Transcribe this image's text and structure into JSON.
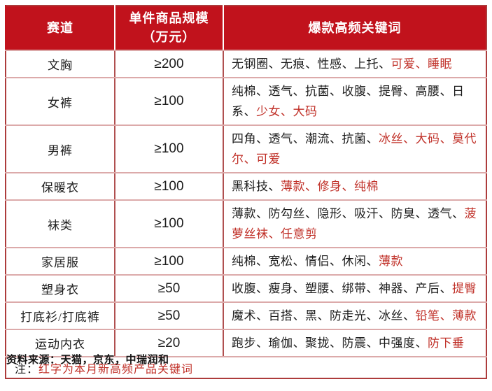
{
  "chart_data": {
    "type": "table",
    "title": "",
    "columns": [
      "赛道",
      "单件商品规模（万元）",
      "爆款高频关键词"
    ],
    "headers": [
      {
        "lines": [
          "赛道"
        ]
      },
      {
        "lines": [
          "单件商品规模",
          "（万元）"
        ]
      },
      {
        "lines": [
          "爆款高频关键词"
        ]
      }
    ],
    "rows": [
      {
        "category": "文胸",
        "scale": "≥200",
        "keywords": [
          {
            "text": "无钢圈、无痕、性感、上托、",
            "red": false
          },
          {
            "text": "可爱、睡眠",
            "red": true
          }
        ]
      },
      {
        "category": "女裤",
        "scale": "≥100",
        "keywords": [
          {
            "text": "纯棉、透气、抗菌、收腹、提臀、高腰、日系、",
            "red": false
          },
          {
            "text": "少女、大码",
            "red": true
          }
        ]
      },
      {
        "category": "男裤",
        "scale": "≥100",
        "keywords": [
          {
            "text": "四角、透气、潮流、抗菌、",
            "red": false
          },
          {
            "text": "冰丝、大码、莫代尔、可爱",
            "red": true
          }
        ]
      },
      {
        "category": "保暖衣",
        "scale": "≥100",
        "keywords": [
          {
            "text": "黑科技、",
            "red": false
          },
          {
            "text": "薄款、修身、纯棉",
            "red": true
          }
        ]
      },
      {
        "category": "袜类",
        "scale": "≥100",
        "keywords": [
          {
            "text": "薄款、防勾丝、隐形、吸汗、防臭、透气、",
            "red": false
          },
          {
            "text": "菠萝丝袜、任意剪",
            "red": true
          }
        ]
      },
      {
        "category": "家居服",
        "scale": "≥100",
        "keywords": [
          {
            "text": "纯棉、宽松、情侣、休闲、",
            "red": false
          },
          {
            "text": "薄款",
            "red": true
          }
        ]
      },
      {
        "category": "塑身衣",
        "scale": "≥50",
        "keywords": [
          {
            "text": "收腹、瘦身、塑腰、绑带、神器、产后、",
            "red": false
          },
          {
            "text": "提臀",
            "red": true
          }
        ]
      },
      {
        "category": "打底衫/打底裤",
        "scale": "≥50",
        "keywords": [
          {
            "text": "魔术、百搭、黑、防走光、冰丝、",
            "red": false
          },
          {
            "text": "铅笔、薄款",
            "red": true
          }
        ]
      },
      {
        "category": "运动内衣",
        "scale": "≥20",
        "keywords": [
          {
            "text": "跑步、瑜伽、聚拢、防震、中强度、",
            "red": false
          },
          {
            "text": "防下垂",
            "red": true
          }
        ]
      }
    ],
    "note_segments": [
      {
        "text": "注：",
        "red": false
      },
      {
        "text": "红字为本月新高频产品关键词",
        "red": true
      }
    ]
  },
  "source": "资料来源：天猫，京东，中瑞润和",
  "colors": {
    "header_bg": "#c1121c",
    "header_text": "#ffffff",
    "red_keyword": "#c03028",
    "body_text": "#1c1c1c",
    "border_outer": "#ad3c3c",
    "border_vertical": "#b05050",
    "border_horizontal": "#dcaaaa"
  }
}
